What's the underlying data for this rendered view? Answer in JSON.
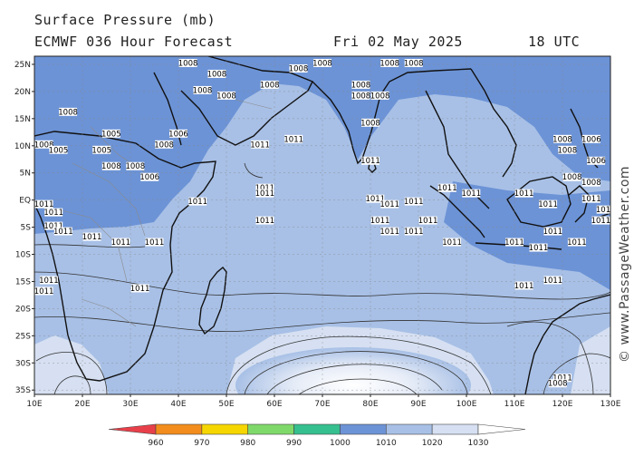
{
  "header": {
    "title": "Surface Pressure (mb)",
    "model": "ECMWF 036 Hour Forecast",
    "date": "Fri 02 May 2025",
    "time": "18 UTC"
  },
  "credit": "© www.PassageWeather.com",
  "axes": {
    "lat_ticks": [
      "25N",
      "20N",
      "15N",
      "10N",
      "5N",
      "EQ",
      "5S",
      "10S",
      "15S",
      "20S",
      "25S",
      "30S",
      "35S"
    ],
    "lon_ticks": [
      "10E",
      "20E",
      "30E",
      "40E",
      "50E",
      "60E",
      "70E",
      "80E",
      "90E",
      "100E",
      "110E",
      "120E",
      "130E"
    ]
  },
  "legend": {
    "labels": [
      "960",
      "970",
      "980",
      "990",
      "1000",
      "1010",
      "1020",
      "1030"
    ],
    "colors": [
      "#e8404a",
      "#f28c1c",
      "#f5d600",
      "#7fd96a",
      "#36bf8f",
      "#6c93d6",
      "#a8c0e6",
      "#d6e0f2"
    ]
  },
  "isobar_labels": [
    {
      "text": "1008",
      "lon": 17,
      "lat": 16
    },
    {
      "text": "1008",
      "lon": 12,
      "lat": 10
    },
    {
      "text": "1005",
      "lon": 15,
      "lat": 9
    },
    {
      "text": "1005",
      "lon": 24,
      "lat": 9
    },
    {
      "text": "1005",
      "lon": 26,
      "lat": 12
    },
    {
      "text": "1008",
      "lon": 26,
      "lat": 6
    },
    {
      "text": "1008",
      "lon": 31,
      "lat": 6
    },
    {
      "text": "1006",
      "lon": 34,
      "lat": 4
    },
    {
      "text": "1008",
      "lon": 37,
      "lat": 10
    },
    {
      "text": "1006",
      "lon": 40,
      "lat": 12
    },
    {
      "text": "1008",
      "lon": 45,
      "lat": 20
    },
    {
      "text": "1008",
      "lon": 48,
      "lat": 23
    },
    {
      "text": "1008",
      "lon": 42,
      "lat": 25
    },
    {
      "text": "1008",
      "lon": 50,
      "lat": 19
    },
    {
      "text": "1008",
      "lon": 59,
      "lat": 21
    },
    {
      "text": "1008",
      "lon": 65,
      "lat": 24
    },
    {
      "text": "1008",
      "lon": 70,
      "lat": 25
    },
    {
      "text": "1008",
      "lon": 78,
      "lat": 21
    },
    {
      "text": "1008",
      "lon": 78,
      "lat": 19
    },
    {
      "text": "1008",
      "lon": 82,
      "lat": 19
    },
    {
      "text": "1008",
      "lon": 84,
      "lat": 25
    },
    {
      "text": "1008",
      "lon": 89,
      "lat": 25
    },
    {
      "text": "1008",
      "lon": 80,
      "lat": 14
    },
    {
      "text": "1011",
      "lon": 57,
      "lat": 10
    },
    {
      "text": "1011",
      "lon": 64,
      "lat": 11
    },
    {
      "text": "1011",
      "lon": 80,
      "lat": 7
    },
    {
      "text": "1011",
      "lon": 58,
      "lat": 2
    },
    {
      "text": "1011",
      "lon": 58,
      "lat": 1
    },
    {
      "text": "1011",
      "lon": 44,
      "lat": -0.5
    },
    {
      "text": "1011",
      "lon": 58,
      "lat": -4
    },
    {
      "text": "1011",
      "lon": 12,
      "lat": -1
    },
    {
      "text": "1011",
      "lon": 14,
      "lat": -2.5
    },
    {
      "text": "1011",
      "lon": 14,
      "lat": -5
    },
    {
      "text": "1011",
      "lon": 16,
      "lat": -6
    },
    {
      "text": "1011",
      "lon": 22,
      "lat": -7
    },
    {
      "text": "1011",
      "lon": 28,
      "lat": -8
    },
    {
      "text": "1011",
      "lon": 35,
      "lat": -8
    },
    {
      "text": "1011",
      "lon": 13,
      "lat": -15
    },
    {
      "text": "1011",
      "lon": 12,
      "lat": -17
    },
    {
      "text": "1011",
      "lon": 32,
      "lat": -16.5
    },
    {
      "text": "1011",
      "lon": 81,
      "lat": 0
    },
    {
      "text": "1011",
      "lon": 84,
      "lat": -1
    },
    {
      "text": "1011",
      "lon": 82,
      "lat": -4
    },
    {
      "text": "1011",
      "lon": 84,
      "lat": -6
    },
    {
      "text": "1011",
      "lon": 89,
      "lat": -0.5
    },
    {
      "text": "1011",
      "lon": 92,
      "lat": -4
    },
    {
      "text": "1011",
      "lon": 89,
      "lat": -6
    },
    {
      "text": "1011",
      "lon": 96,
      "lat": 2
    },
    {
      "text": "1011",
      "lon": 101,
      "lat": 1
    },
    {
      "text": "1011",
      "lon": 97,
      "lat": -8
    },
    {
      "text": "1011",
      "lon": 112,
      "lat": 1
    },
    {
      "text": "1011",
      "lon": 117,
      "lat": -1
    },
    {
      "text": "1011",
      "lon": 118,
      "lat": -6
    },
    {
      "text": "1011",
      "lon": 110,
      "lat": -8
    },
    {
      "text": "1011",
      "lon": 115,
      "lat": -9
    },
    {
      "text": "1011",
      "lon": 123,
      "lat": -8
    },
    {
      "text": "1011",
      "lon": 118,
      "lat": -15
    },
    {
      "text": "1011",
      "lon": 112,
      "lat": -16
    },
    {
      "text": "1011",
      "lon": 128,
      "lat": -4
    },
    {
      "text": "1011",
      "lon": 120,
      "lat": -33
    },
    {
      "text": "1008",
      "lon": 119,
      "lat": -34
    },
    {
      "text": "1008",
      "lon": 120,
      "lat": 11
    },
    {
      "text": "1008",
      "lon": 121,
      "lat": 9
    },
    {
      "text": "1008",
      "lon": 122,
      "lat": 4
    },
    {
      "text": "1008",
      "lon": 126,
      "lat": 3
    },
    {
      "text": "1006",
      "lon": 126,
      "lat": 11
    },
    {
      "text": "1006",
      "lon": 127,
      "lat": 7
    },
    {
      "text": "1011",
      "lon": 126,
      "lat": 0
    },
    {
      "text": "1011",
      "lon": 129,
      "lat": -2
    }
  ]
}
